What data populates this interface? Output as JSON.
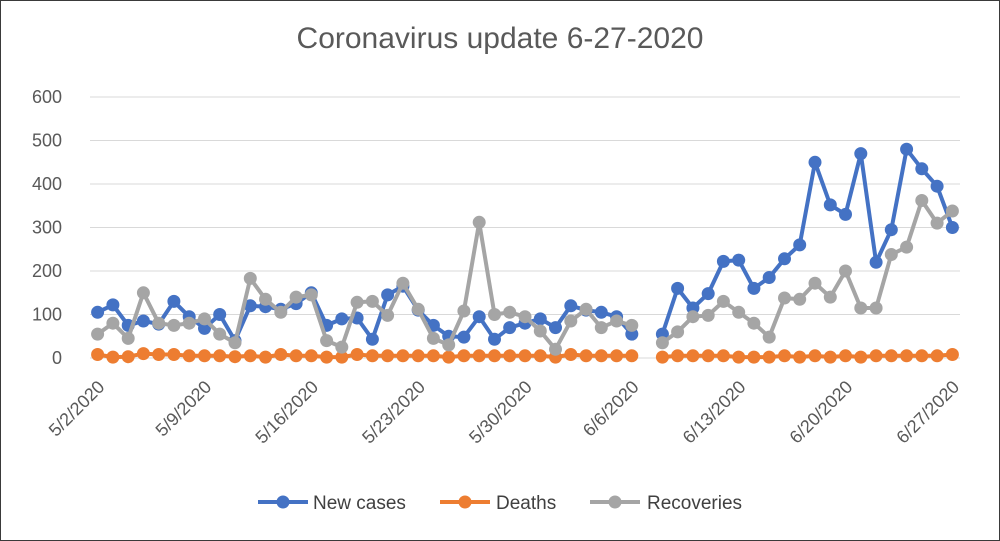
{
  "chart_data": {
    "type": "line",
    "title": "Coronavirus update 6-27-2020",
    "xlabel": "",
    "ylabel": "",
    "ylim": [
      0,
      600
    ],
    "yticks": [
      0,
      100,
      200,
      300,
      400,
      500,
      600
    ],
    "grid": true,
    "legend": "bottom",
    "x_tick_labels": [
      "5/2/2020",
      "5/9/2020",
      "5/16/2020",
      "5/23/2020",
      "5/30/2020",
      "6/6/2020",
      "6/13/2020",
      "6/20/2020",
      "6/27/2020"
    ],
    "x_tick_every": 7,
    "x_start": "5/2/2020",
    "series": [
      {
        "name": "New cases",
        "color": "#4472C4",
        "values": [
          105,
          122,
          75,
          85,
          78,
          130,
          95,
          68,
          100,
          40,
          120,
          118,
          112,
          125,
          150,
          75,
          90,
          92,
          43,
          145,
          165,
          110,
          75,
          50,
          48,
          95,
          43,
          70,
          80,
          90,
          70,
          120,
          110,
          105,
          95,
          55,
          null,
          55,
          160,
          115,
          148,
          222,
          225,
          160,
          185,
          228,
          260,
          450,
          352,
          330,
          470,
          220,
          295,
          480,
          435,
          395,
          300
        ]
      },
      {
        "name": "Deaths",
        "color": "#ED7D31",
        "values": [
          8,
          2,
          3,
          10,
          8,
          8,
          5,
          5,
          5,
          3,
          5,
          2,
          8,
          5,
          5,
          2,
          2,
          8,
          5,
          5,
          5,
          5,
          5,
          2,
          5,
          5,
          5,
          5,
          5,
          5,
          2,
          8,
          5,
          5,
          5,
          5,
          null,
          2,
          5,
          5,
          5,
          5,
          2,
          2,
          2,
          5,
          2,
          5,
          2,
          5,
          2,
          5,
          5,
          5,
          5,
          5,
          8
        ]
      },
      {
        "name": "Recoveries",
        "color": "#A5A5A5",
        "values": [
          55,
          80,
          45,
          150,
          80,
          75,
          80,
          90,
          55,
          35,
          183,
          135,
          105,
          140,
          145,
          40,
          25,
          128,
          130,
          98,
          172,
          112,
          45,
          30,
          108,
          312,
          100,
          105,
          95,
          62,
          20,
          85,
          112,
          70,
          85,
          75,
          null,
          35,
          60,
          95,
          98,
          130,
          105,
          80,
          48,
          138,
          135,
          172,
          140,
          200,
          115,
          115,
          238,
          255,
          362,
          310,
          338
        ]
      }
    ]
  }
}
